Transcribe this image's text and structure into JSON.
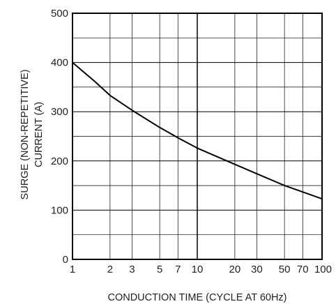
{
  "chart_data": {
    "type": "line",
    "title": "",
    "xlabel": "CONDUCTION TIME (CYCLE AT 60Hz)",
    "ylabel_lines": [
      "SURGE (NON-REPETITIVE)",
      "CURRENT (A)"
    ],
    "x_scale": "log",
    "xlim": [
      1,
      100
    ],
    "ylim": [
      0,
      500
    ],
    "x_ticks": [
      1,
      2,
      3,
      5,
      7,
      10,
      20,
      30,
      50,
      70,
      100
    ],
    "x_tick_labels": [
      "1",
      "2",
      "3",
      "5",
      "7",
      "10",
      "20",
      "30",
      "50",
      "70",
      "100"
    ],
    "y_ticks": [
      0,
      100,
      200,
      300,
      400,
      500
    ],
    "y_tick_labels": [
      "0",
      "100",
      "200",
      "300",
      "400",
      "500"
    ],
    "grid": true,
    "series": [
      {
        "x": [
          1,
          1.5,
          2,
          3,
          5,
          7,
          10,
          20,
          30,
          50,
          70,
          100
        ],
        "values": [
          400,
          362,
          333,
          303,
          268,
          247,
          226,
          193,
          174,
          150,
          137,
          123
        ]
      }
    ]
  },
  "colors": {
    "line": "#000000",
    "grid": "#000000",
    "text": "#222222"
  }
}
